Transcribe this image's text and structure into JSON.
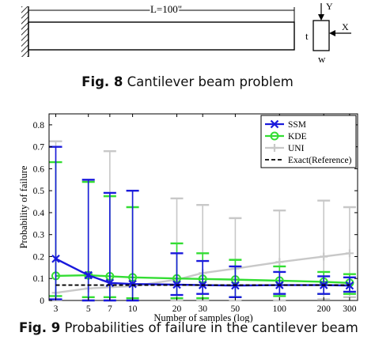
{
  "figure8": {
    "length_label": "L=100\"",
    "axis_y": "Y",
    "axis_x": "X",
    "dim_t": "t",
    "dim_w": "w",
    "caption_prefix": "Fig. 8",
    "caption_text": "Cantilever beam problem"
  },
  "figure9": {
    "caption_prefix": "Fig. 9",
    "caption_text": "Probabilities of failure in the cantilever beam"
  },
  "chart_data": {
    "type": "line",
    "xscale": "log",
    "xlabel": "Number of samples (log)",
    "ylabel": "Probability of failure",
    "ylim": [
      0,
      0.85
    ],
    "yticks": [
      0,
      0.1,
      0.2,
      0.3,
      0.4,
      0.5,
      0.6,
      0.7,
      0.8
    ],
    "ytick_labels": [
      "0",
      "0.1",
      "0.2",
      "0.3",
      "0.4",
      "0.5",
      "0.6",
      "0.7",
      "0.8"
    ],
    "x": [
      3,
      5,
      7,
      10,
      20,
      30,
      50,
      100,
      200,
      300
    ],
    "x_labels": [
      "3",
      "5",
      "7",
      "10",
      "20",
      "30",
      "50",
      "100",
      "200",
      "300"
    ],
    "grid": false,
    "legend_position": "top-right",
    "series": [
      {
        "name": "UNI",
        "color": "#c8c8c8",
        "marker": "plus",
        "values": [
          0.035,
          0.055,
          0.06,
          0.065,
          0.095,
          0.125,
          0.145,
          0.175,
          0.2,
          0.215
        ],
        "lower": [
          0.0,
          0.0,
          0.0,
          0.0,
          0.0,
          0.0,
          0.0,
          0.0,
          0.005,
          0.015
        ],
        "upper": [
          0.725,
          0.545,
          0.68,
          0.5,
          0.465,
          0.435,
          0.375,
          0.41,
          0.455,
          0.425
        ]
      },
      {
        "name": "KDE",
        "color": "#33dd33",
        "marker": "circle",
        "values": [
          0.112,
          0.115,
          0.11,
          0.105,
          0.1,
          0.098,
          0.095,
          0.09,
          0.085,
          0.08
        ],
        "lower": [
          0.02,
          0.015,
          0.015,
          0.01,
          0.01,
          0.01,
          0.015,
          0.02,
          0.03,
          0.03
        ],
        "upper": [
          0.63,
          0.54,
          0.475,
          0.425,
          0.26,
          0.215,
          0.185,
          0.155,
          0.13,
          0.12
        ]
      },
      {
        "name": "SSM",
        "color": "#1a1adc",
        "marker": "x",
        "values": [
          0.19,
          0.115,
          0.08,
          0.075,
          0.072,
          0.07,
          0.068,
          0.07,
          0.07,
          0.068
        ],
        "lower": [
          0.005,
          0.0,
          0.0,
          0.0,
          0.025,
          0.03,
          0.015,
          0.03,
          0.03,
          0.04
        ],
        "upper": [
          0.7,
          0.55,
          0.49,
          0.5,
          0.215,
          0.18,
          0.155,
          0.13,
          0.11,
          0.105
        ]
      },
      {
        "name": "Exact(Reference)",
        "color": "#000000",
        "marker": "none",
        "dashed": true,
        "values": [
          0.07,
          0.07,
          0.07,
          0.07,
          0.07,
          0.07,
          0.07,
          0.07,
          0.07,
          0.07
        ]
      }
    ],
    "legend_order": [
      "SSM",
      "KDE",
      "UNI",
      "Exact(Reference)"
    ]
  }
}
